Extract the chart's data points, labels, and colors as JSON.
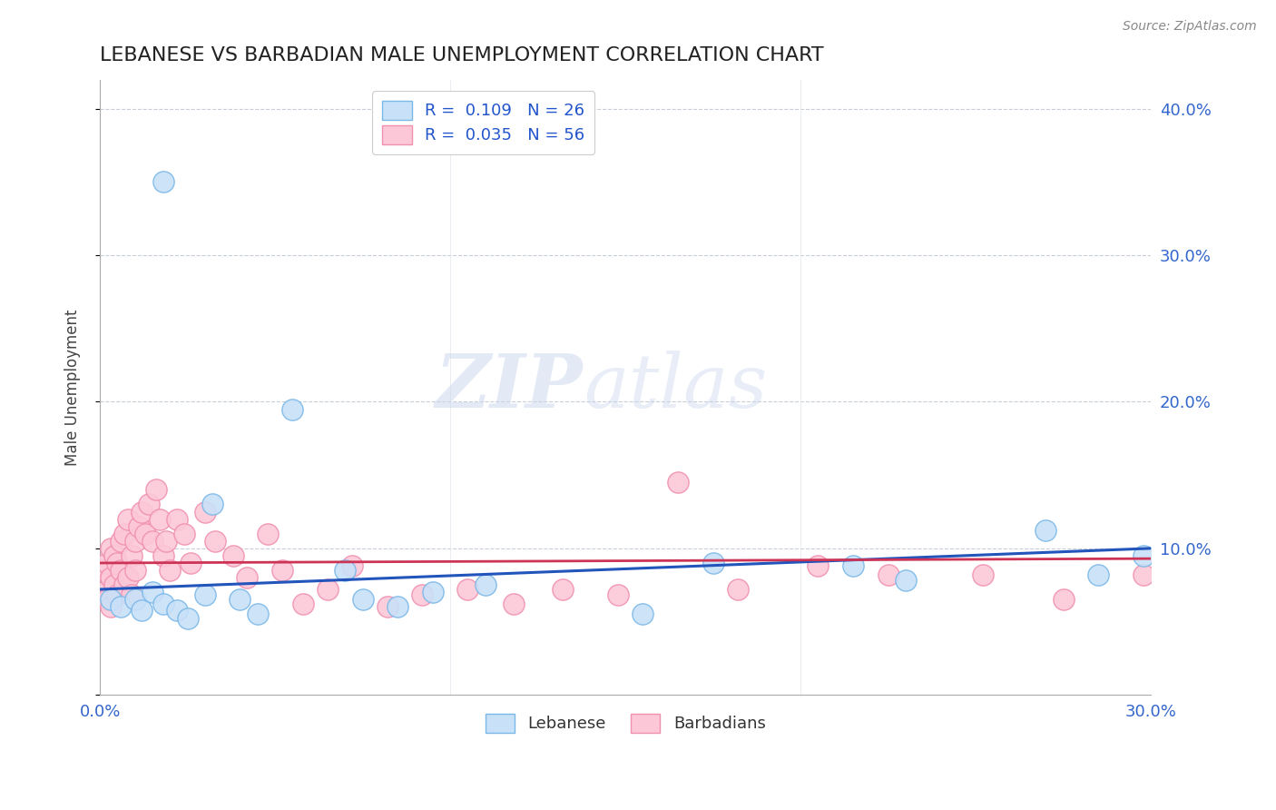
{
  "title": "LEBANESE VS BARBADIAN MALE UNEMPLOYMENT CORRELATION CHART",
  "source_text": "Source: ZipAtlas.com",
  "ylabel": "Male Unemployment",
  "xlim": [
    0.0,
    0.3
  ],
  "ylim": [
    0.0,
    0.42
  ],
  "blue_color": "#7ab8e8",
  "pink_color": "#f090b0",
  "blue_fill": "#c8e0f8",
  "pink_fill": "#fcc8d8",
  "blue_line_color": "#2255bb",
  "pink_line_color": "#cc3355",
  "grid_color": "#c8cdd8",
  "lebanese_x": [
    0.018,
    0.003,
    0.006,
    0.01,
    0.012,
    0.015,
    0.018,
    0.022,
    0.025,
    0.03,
    0.032,
    0.04,
    0.045,
    0.055,
    0.07,
    0.075,
    0.085,
    0.095,
    0.11,
    0.155,
    0.175,
    0.215,
    0.23,
    0.27,
    0.285,
    0.298
  ],
  "lebanese_y": [
    0.35,
    0.065,
    0.06,
    0.065,
    0.058,
    0.07,
    0.062,
    0.058,
    0.052,
    0.068,
    0.13,
    0.065,
    0.055,
    0.195,
    0.085,
    0.065,
    0.06,
    0.07,
    0.075,
    0.055,
    0.09,
    0.088,
    0.078,
    0.112,
    0.082,
    0.095
  ],
  "barbadian_x": [
    0.001,
    0.001,
    0.002,
    0.002,
    0.003,
    0.003,
    0.003,
    0.004,
    0.004,
    0.005,
    0.005,
    0.006,
    0.006,
    0.007,
    0.007,
    0.008,
    0.008,
    0.009,
    0.009,
    0.01,
    0.01,
    0.011,
    0.012,
    0.013,
    0.014,
    0.015,
    0.016,
    0.017,
    0.018,
    0.019,
    0.02,
    0.022,
    0.024,
    0.026,
    0.03,
    0.033,
    0.038,
    0.042,
    0.048,
    0.052,
    0.058,
    0.065,
    0.072,
    0.082,
    0.092,
    0.105,
    0.118,
    0.132,
    0.148,
    0.165,
    0.182,
    0.205,
    0.225,
    0.252,
    0.275,
    0.298
  ],
  "barbadian_y": [
    0.07,
    0.085,
    0.065,
    0.09,
    0.06,
    0.08,
    0.1,
    0.075,
    0.095,
    0.068,
    0.09,
    0.085,
    0.105,
    0.075,
    0.11,
    0.08,
    0.12,
    0.068,
    0.095,
    0.105,
    0.085,
    0.115,
    0.125,
    0.11,
    0.13,
    0.105,
    0.14,
    0.12,
    0.095,
    0.105,
    0.085,
    0.12,
    0.11,
    0.09,
    0.125,
    0.105,
    0.095,
    0.08,
    0.11,
    0.085,
    0.062,
    0.072,
    0.088,
    0.06,
    0.068,
    0.072,
    0.062,
    0.072,
    0.068,
    0.145,
    0.072,
    0.088,
    0.082,
    0.082,
    0.065,
    0.082
  ]
}
